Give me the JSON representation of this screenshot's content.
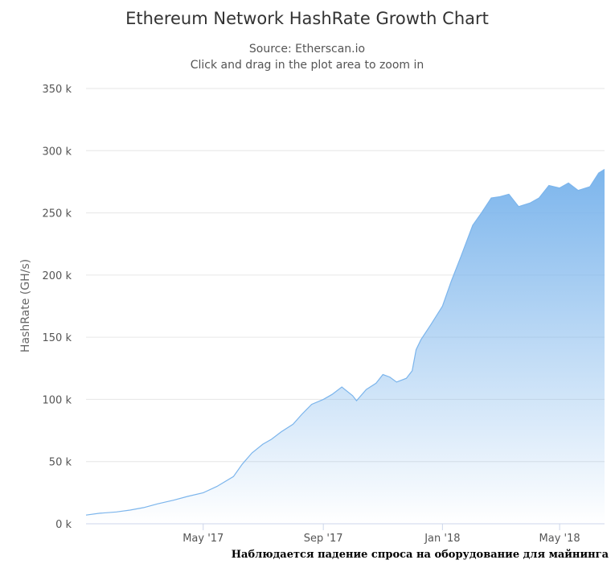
{
  "caption": "Наблюдается падение спроса на оборудование для майнинга",
  "chart_data": {
    "type": "area",
    "title": "Ethereum Network HashRate Growth Chart",
    "subtitle_lines": [
      "Source: Etherscan.io",
      "Click and drag in the plot area to zoom in"
    ],
    "xlabel": "",
    "ylabel": "HashRate (GH/s)",
    "ylim": [
      0,
      350000
    ],
    "y_ticks": [
      0,
      50000,
      100000,
      150000,
      200000,
      250000,
      300000,
      350000
    ],
    "y_tick_labels": [
      "0 k",
      "50 k",
      "100 k",
      "150 k",
      "200 k",
      "250 k",
      "300 k",
      "350 k"
    ],
    "xlim": [
      "2017-01-01",
      "2018-06-16"
    ],
    "x_ticks": [
      "2017-05-01",
      "2017-09-01",
      "2018-01-01",
      "2018-05-01"
    ],
    "x_tick_labels": [
      "May '17",
      "Sep '17",
      "Jan '18",
      "May '18"
    ],
    "grid": true,
    "legend": "none",
    "colors": {
      "line": "#7cb5ec",
      "fill_top": "#7cb5ec",
      "grid": "#e6e6e6"
    },
    "series": [
      {
        "x": [
          "2017-01-01",
          "2017-01-15",
          "2017-02-01",
          "2017-02-15",
          "2017-03-01",
          "2017-03-15",
          "2017-04-01",
          "2017-04-15",
          "2017-05-01",
          "2017-05-15",
          "2017-06-01",
          "2017-06-10",
          "2017-06-20",
          "2017-07-01",
          "2017-07-10",
          "2017-07-20",
          "2017-08-01",
          "2017-08-10",
          "2017-08-20",
          "2017-09-01",
          "2017-09-10",
          "2017-09-20",
          "2017-10-01",
          "2017-10-05",
          "2017-10-15",
          "2017-10-25",
          "2017-11-01",
          "2017-11-08",
          "2017-11-15",
          "2017-11-25",
          "2017-12-01",
          "2017-12-05",
          "2017-12-10",
          "2017-12-20",
          "2018-01-01",
          "2018-01-10",
          "2018-01-20",
          "2018-02-01",
          "2018-02-10",
          "2018-02-20",
          "2018-03-01",
          "2018-03-10",
          "2018-03-20",
          "2018-04-01",
          "2018-04-10",
          "2018-04-20",
          "2018-05-01",
          "2018-05-10",
          "2018-05-20",
          "2018-06-01",
          "2018-06-10",
          "2018-06-16"
        ],
        "values": [
          7000,
          8500,
          9500,
          11000,
          13000,
          16000,
          19000,
          22000,
          25000,
          30000,
          38000,
          48000,
          57000,
          64000,
          68000,
          74000,
          80000,
          88000,
          96000,
          100000,
          104000,
          110000,
          103000,
          99000,
          108000,
          113000,
          120000,
          118000,
          114000,
          117000,
          123000,
          140000,
          148000,
          160000,
          175000,
          195000,
          215000,
          240000,
          250000,
          262000,
          263000,
          265000,
          255000,
          258000,
          262000,
          272000,
          270000,
          274000,
          268000,
          271000,
          282000,
          285000
        ]
      }
    ]
  }
}
